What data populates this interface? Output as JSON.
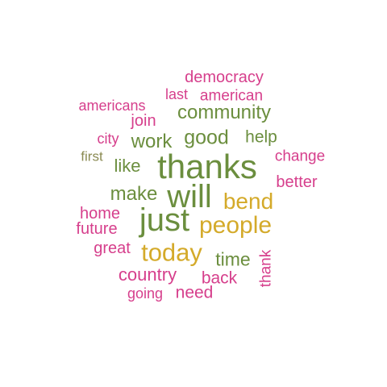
{
  "palette": {
    "olive": "#6b8e3e",
    "pink": "#d63f8c",
    "gold": "#d4aa2a",
    "khaki": "#8a8a52"
  },
  "words": [
    {
      "text": "democracy",
      "color": "pink"
    },
    {
      "text": "last",
      "color": "pink"
    },
    {
      "text": "american",
      "color": "pink"
    },
    {
      "text": "americans",
      "color": "pink"
    },
    {
      "text": "community",
      "color": "olive"
    },
    {
      "text": "join",
      "color": "pink"
    },
    {
      "text": "city",
      "color": "pink"
    },
    {
      "text": "work",
      "color": "olive"
    },
    {
      "text": "good",
      "color": "olive"
    },
    {
      "text": "help",
      "color": "olive"
    },
    {
      "text": "first",
      "color": "khaki"
    },
    {
      "text": "like",
      "color": "olive"
    },
    {
      "text": "thanks",
      "color": "olive"
    },
    {
      "text": "change",
      "color": "pink"
    },
    {
      "text": "better",
      "color": "pink"
    },
    {
      "text": "make",
      "color": "olive"
    },
    {
      "text": "will",
      "color": "olive"
    },
    {
      "text": "bend",
      "color": "gold"
    },
    {
      "text": "home",
      "color": "pink"
    },
    {
      "text": "just",
      "color": "olive"
    },
    {
      "text": "people",
      "color": "gold"
    },
    {
      "text": "future",
      "color": "pink"
    },
    {
      "text": "great",
      "color": "pink"
    },
    {
      "text": "today",
      "color": "gold"
    },
    {
      "text": "time",
      "color": "olive"
    },
    {
      "text": "thank",
      "color": "pink"
    },
    {
      "text": "country",
      "color": "pink"
    },
    {
      "text": "back",
      "color": "pink"
    },
    {
      "text": "going",
      "color": "pink"
    },
    {
      "text": "need",
      "color": "pink"
    }
  ]
}
